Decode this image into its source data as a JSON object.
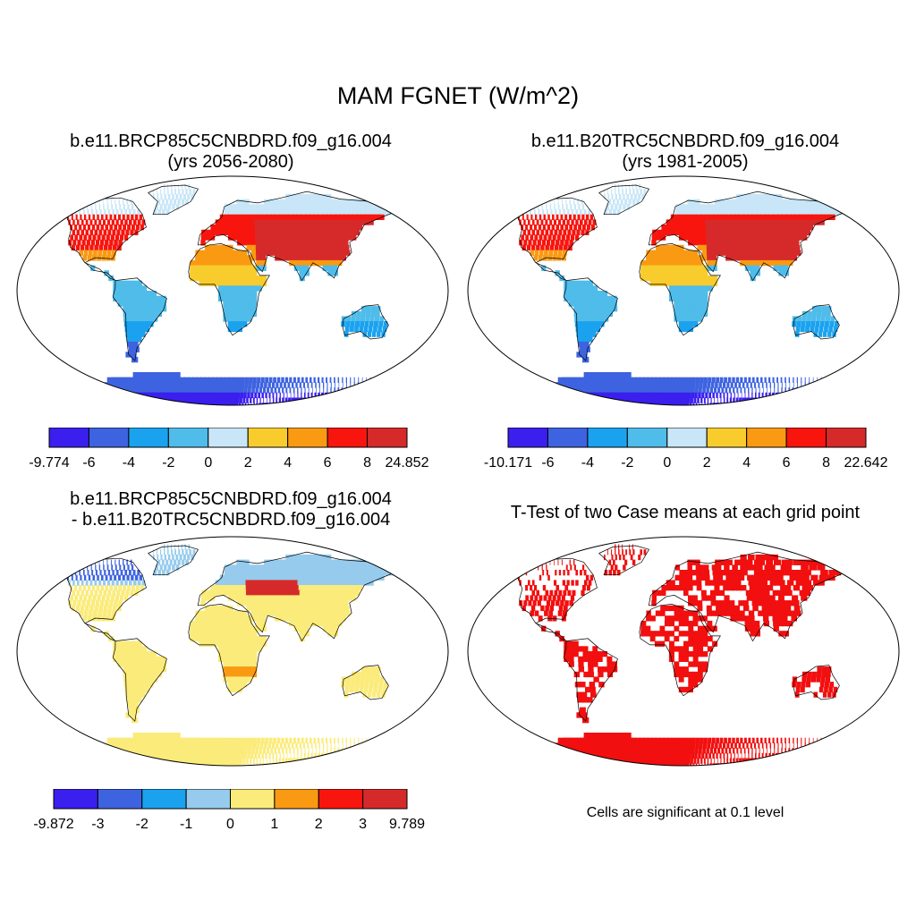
{
  "title": "MAM FGNET (W/m^2)",
  "panels": [
    {
      "id": "top-left",
      "title_line1": "b.e11.BRCP85C5CNBDRD.f09_g16.004",
      "title_line2": "(yrs 2056-2080)",
      "colorbar": {
        "colors": [
          "#3a1fef",
          "#3e63e0",
          "#1aa2ef",
          "#4fbcea",
          "#c8e6f7",
          "#f9cc2e",
          "#f99a12",
          "#f7150e",
          "#d62a2a"
        ],
        "labels": [
          "-9.774",
          "-6",
          "-4",
          "-2",
          "0",
          "2",
          "4",
          "6",
          "8",
          "24.852"
        ]
      }
    },
    {
      "id": "top-right",
      "title_line1": "b.e11.B20TRC5CNBDRD.f09_g16.004",
      "title_line2": "(yrs 1981-2005)",
      "colorbar": {
        "colors": [
          "#3a1fef",
          "#3e63e0",
          "#1aa2ef",
          "#4fbcea",
          "#c8e6f7",
          "#f9cc2e",
          "#f99a12",
          "#f7150e",
          "#d62a2a"
        ],
        "labels": [
          "-10.171",
          "-6",
          "-4",
          "-2",
          "0",
          "2",
          "4",
          "6",
          "8",
          "22.642"
        ]
      }
    },
    {
      "id": "bottom-left",
      "title_line1": "b.e11.BRCP85C5CNBDRD.f09_g16.004",
      "title_line2": "- b.e11.B20TRC5CNBDRD.f09_g16.004",
      "colorbar": {
        "colors": [
          "#3a1fef",
          "#3e63e0",
          "#1aa2ef",
          "#96cbed",
          "#fbeb7a",
          "#f99a12",
          "#f7150e",
          "#d62a2a"
        ],
        "labels": [
          "-9.872",
          "-3",
          "-2",
          "-1",
          "0",
          "1",
          "2",
          "3",
          "9.789"
        ]
      }
    },
    {
      "id": "bottom-right",
      "title_line1": "T-Test of two Case means at each grid point",
      "note": "Cells are significant at 0.1 level"
    }
  ],
  "legend_colors": {
    "significant": "#f20f0f",
    "ocean": "#ffffff",
    "coast": "#000000"
  }
}
